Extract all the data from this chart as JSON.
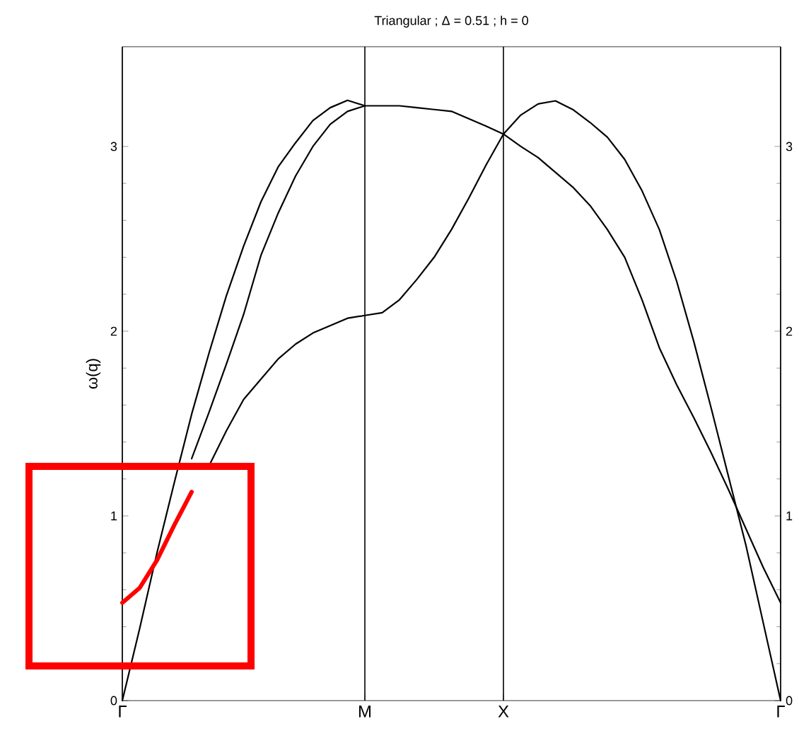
{
  "chart_data": {
    "type": "line",
    "title": "Triangular ; Δ = 0.51 ; h = 0",
    "ylabel": "ω(q)",
    "categories": [
      "Γ",
      null,
      null,
      null,
      null,
      null,
      null,
      null,
      null,
      null,
      null,
      null,
      null,
      null,
      "M",
      null,
      null,
      null,
      null,
      null,
      null,
      null,
      "X",
      null,
      null,
      null,
      null,
      null,
      null,
      null,
      null,
      null,
      null,
      null,
      null,
      null,
      null,
      null,
      "Γ"
    ],
    "ylim": [
      0,
      3.54
    ],
    "y2lim": [
      0,
      3.54
    ],
    "yticks": [
      0,
      1,
      2,
      3
    ],
    "y2ticks": [
      0,
      1,
      2,
      3
    ],
    "grid": "x",
    "marker": "none",
    "line_style": "solid",
    "series": [
      {
        "color": "#000000",
        "values": [
          0,
          0.39,
          0.8,
          1.18,
          1.55,
          1.88,
          2.19,
          2.46,
          2.7,
          2.89,
          3.02,
          3.14,
          3.21,
          3.25,
          3.22,
          null,
          null,
          null,
          null,
          null,
          null,
          null,
          null,
          null,
          null,
          null,
          null,
          null,
          null,
          null,
          null,
          null,
          null,
          null,
          null,
          null,
          null,
          null,
          null
        ]
      },
      {
        "color": "#000000",
        "values": [
          null,
          null,
          null,
          null,
          1.31,
          1.56,
          1.82,
          2.09,
          2.41,
          2.64,
          2.84,
          3.0,
          3.12,
          3.19,
          3.22,
          3.22,
          3.22,
          3.21,
          3.2,
          3.19,
          3.15,
          3.11,
          3.067,
          3.0,
          2.94,
          2.86,
          2.78,
          2.68,
          2.55,
          2.4,
          2.17,
          1.91,
          1.71,
          1.53,
          1.34,
          1.14,
          0.93,
          0.72,
          0.53
        ]
      },
      {
        "color": "#000000",
        "values": [
          null,
          null,
          null,
          null,
          null,
          1.27,
          1.46,
          1.63,
          1.74,
          1.85,
          1.93,
          1.99,
          2.03,
          2.07,
          2.085,
          2.1,
          2.17,
          2.28,
          2.4,
          2.55,
          2.72,
          2.9,
          3.067,
          3.17,
          3.23,
          3.247,
          3.2,
          3.13,
          3.05,
          2.93,
          2.76,
          2.55,
          2.27,
          1.94,
          1.58,
          1.21,
          0.84,
          0.42,
          0
        ]
      },
      {
        "color": "#ff0000",
        "values": [
          0.53,
          0.61,
          0.76,
          0.95,
          1.13,
          null,
          null,
          null,
          null,
          null,
          null,
          null,
          null,
          null,
          null,
          null,
          null,
          null,
          null,
          null,
          null,
          null,
          null,
          null,
          null,
          null,
          null,
          null,
          null,
          null,
          null,
          null,
          null,
          null,
          null,
          null,
          null,
          null,
          null
        ]
      }
    ]
  }
}
